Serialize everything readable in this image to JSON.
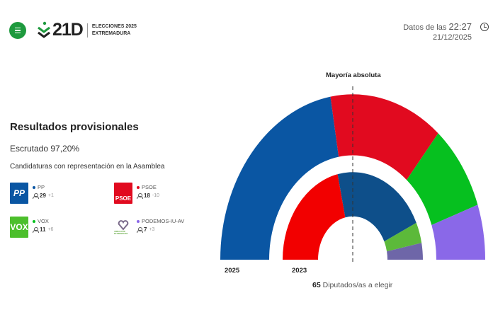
{
  "header": {
    "logo": "21D",
    "subtitle_line1": "ELECCIONES 2025",
    "subtitle_line2": "EXTREMADURA",
    "data_label": "Datos de las",
    "time": "22:27",
    "date": "21/12/2025"
  },
  "results": {
    "title": "Resultados provisionales",
    "scrutinized": "Escrutado 97,20%",
    "subtitle": "Candidaturas con representación en la Asamblea"
  },
  "parties": [
    {
      "name": "PP",
      "logo": "PP",
      "seats": "29",
      "change": "+1",
      "color": "#0a56a3"
    },
    {
      "name": "PSOE",
      "logo": "PSOE",
      "seats": "18",
      "change": "-10",
      "color": "#e10a1f"
    },
    {
      "name": "VOX",
      "logo": "VOX",
      "seats": "11",
      "change": "+6",
      "color": "#06c01f"
    },
    {
      "name": "PODEMOS-IU-AV",
      "logo": "UNIDAS POR EXTREMADURA",
      "seats": "7",
      "change": "+3",
      "color": "#8a68e8"
    }
  ],
  "chart_data": {
    "type": "hemicycle",
    "majority_label": "Mayoría absoluta",
    "majority": 33,
    "total_seats": 65,
    "total_label": "Diputados/as a elegir",
    "rings": [
      {
        "name": "2025",
        "segments": [
          {
            "party": "PP",
            "seats": 29,
            "color": "#0a56a3"
          },
          {
            "party": "PSOE",
            "seats": 18,
            "color": "#e10a1f"
          },
          {
            "party": "VOX",
            "seats": 11,
            "color": "#06c01f"
          },
          {
            "party": "PODEMOS-IU-AV",
            "seats": 7,
            "color": "#8a68e8"
          }
        ]
      },
      {
        "name": "2023",
        "segments": [
          {
            "party": "PSOE",
            "seats": 28,
            "color": "#f20000"
          },
          {
            "party": "PP",
            "seats": 28,
            "color": "#0e4f8a"
          },
          {
            "party": "VOX",
            "seats": 5,
            "color": "#5cb93a"
          },
          {
            "party": "PODEMOS-IU-AV",
            "seats": 4,
            "color": "#6e66a8"
          }
        ]
      }
    ]
  }
}
